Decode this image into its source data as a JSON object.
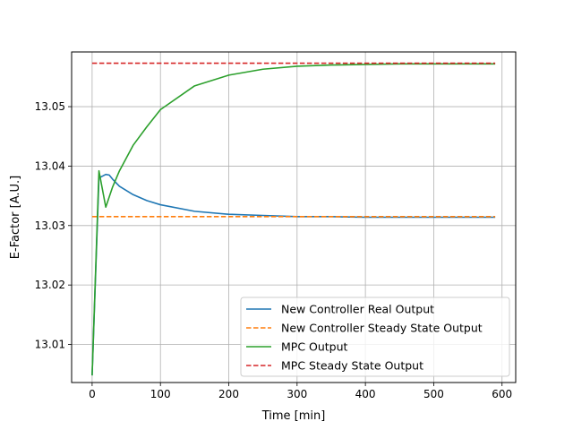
{
  "chart_data": {
    "type": "line",
    "title": "",
    "xlabel": "Time [min]",
    "ylabel": "E-Factor [A.U.]",
    "xlim": [
      -30,
      620
    ],
    "ylim": [
      13.0036,
      13.0592
    ],
    "xticks": [
      0,
      100,
      200,
      300,
      400,
      500,
      600
    ],
    "yticks": [
      13.01,
      13.02,
      13.03,
      13.04,
      13.05
    ],
    "xtick_labels": [
      "0",
      "100",
      "200",
      "300",
      "400",
      "500",
      "600"
    ],
    "ytick_labels": [
      "13.01",
      "13.02",
      "13.03",
      "13.04",
      "13.05"
    ],
    "grid": true,
    "legend_position": "lower-right",
    "series": [
      {
        "name": "New Controller Real Output",
        "color": "#1f77b4",
        "dash": "solid",
        "x": [
          0,
          10,
          20,
          25,
          30,
          40,
          60,
          80,
          100,
          150,
          200,
          250,
          300,
          350,
          400,
          450,
          500,
          550,
          590
        ],
        "y": [
          13.0048,
          13.038,
          13.0386,
          13.0385,
          13.0378,
          13.0366,
          13.0352,
          13.0342,
          13.0335,
          13.0324,
          13.0319,
          13.0317,
          13.0315,
          13.0315,
          13.0314,
          13.0314,
          13.0314,
          13.0314,
          13.0314
        ]
      },
      {
        "name": "New Controller Steady State Output",
        "color": "#ff7f0e",
        "dash": "dashed",
        "x": [
          0,
          590
        ],
        "y": [
          13.0315,
          13.0315
        ]
      },
      {
        "name": "MPC Output",
        "color": "#2ca02c",
        "dash": "solid",
        "x": [
          0,
          10,
          20,
          30,
          40,
          60,
          80,
          100,
          150,
          200,
          250,
          300,
          350,
          400,
          450,
          500,
          550,
          590
        ],
        "y": [
          13.0048,
          13.0392,
          13.0331,
          13.0365,
          13.0392,
          13.0435,
          13.0466,
          13.0495,
          13.0535,
          13.0553,
          13.0563,
          13.0568,
          13.057,
          13.0571,
          13.0572,
          13.0572,
          13.0572,
          13.0572
        ]
      },
      {
        "name": "MPC Steady State Output",
        "color": "#d62728",
        "dash": "dashed",
        "x": [
          0,
          590
        ],
        "y": [
          13.0573,
          13.0573
        ]
      }
    ]
  }
}
